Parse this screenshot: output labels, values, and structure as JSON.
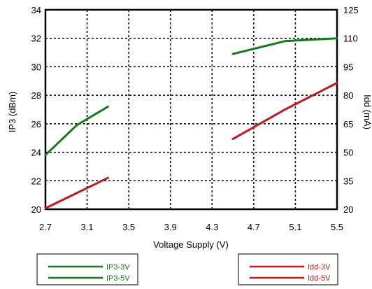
{
  "chart_data": {
    "type": "line",
    "title": "",
    "xlabel": "Voltage Supply (V)",
    "ylabel": "IP3 (dBm)",
    "y2label": "Idd (mA)",
    "xlim": [
      2.7,
      5.5
    ],
    "ylim": [
      20,
      34
    ],
    "y2lim": [
      20,
      125
    ],
    "x_ticks": [
      "2.7",
      "3.1",
      "3.5",
      "3.9",
      "4.3",
      "4.7",
      "5.1",
      "5.5"
    ],
    "y_ticks": [
      "20",
      "22",
      "24",
      "26",
      "28",
      "30",
      "32",
      "34"
    ],
    "y2_ticks": [
      "20",
      "35",
      "50",
      "65",
      "80",
      "95",
      "110",
      "125"
    ],
    "grid": true,
    "series": [
      {
        "name": "IP3-3V",
        "axis": "left",
        "color": "#157a1c",
        "x": [
          2.7,
          3.0,
          3.3
        ],
        "y": [
          23.8,
          25.9,
          27.2
        ]
      },
      {
        "name": "IP3-5V",
        "axis": "left",
        "color": "#157a1c",
        "x": [
          4.5,
          5.0,
          5.5
        ],
        "y": [
          30.9,
          31.8,
          32.0
        ]
      },
      {
        "name": "Idd-3V",
        "axis": "right",
        "color": "#b81c1c",
        "x": [
          2.7,
          3.0,
          3.3
        ],
        "y": [
          20.5,
          28.5,
          36.5
        ]
      },
      {
        "name": "Idd-5V",
        "axis": "right",
        "color": "#b81c1c",
        "x": [
          4.5,
          5.0,
          5.5
        ],
        "y": [
          57.0,
          72.5,
          86.5
        ]
      }
    ]
  },
  "legend": {
    "left": [
      "IP3-3V",
      "IP3-5V"
    ],
    "right": [
      "Idd-3V",
      "Idd-5V"
    ]
  }
}
